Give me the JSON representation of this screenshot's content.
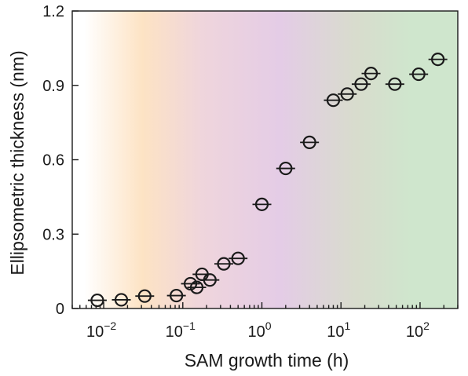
{
  "chart_data": {
    "type": "scatter",
    "xlabel": "SAM growth time (h)",
    "ylabel": "Ellipsometric thickness (nm)",
    "x_scale": "log",
    "xlim": [
      0.004,
      300
    ],
    "ylim": [
      0,
      1.2
    ],
    "grid": false,
    "y_ticks": [
      0,
      0.3,
      0.6,
      0.9,
      1.2
    ],
    "y_tick_labels": [
      "0",
      "0.3",
      "0.6",
      "0.9",
      "1.2"
    ],
    "x_ticks": [
      0.01,
      0.1,
      1,
      10,
      100
    ],
    "x_tick_labels": [
      {
        "base": "10",
        "exp": "−2"
      },
      {
        "base": "10",
        "exp": "−1"
      },
      {
        "base": "10",
        "exp": "0"
      },
      {
        "base": "10",
        "exp": "1"
      },
      {
        "base": "10",
        "exp": "2"
      }
    ],
    "background_regions": [
      {
        "from": 0.004,
        "to": 0.008,
        "color": "#ffffff"
      },
      {
        "from": 0.008,
        "to": 0.12,
        "color": "#fde3c4"
      },
      {
        "from": 0.12,
        "to": 0.25,
        "color": "#efd5dc"
      },
      {
        "from": 0.25,
        "to": 12,
        "color": "#e4cce6"
      },
      {
        "from": 12,
        "to": 20,
        "color": "#d8dccd"
      },
      {
        "from": 20,
        "to": 300,
        "color": "#cfe6cd"
      }
    ],
    "marker_color": "#1a1a1a",
    "points": [
      {
        "x": 0.0083,
        "y": 0.033
      },
      {
        "x": 0.0167,
        "y": 0.035
      },
      {
        "x": 0.033,
        "y": 0.05
      },
      {
        "x": 0.083,
        "y": 0.052
      },
      {
        "x": 0.125,
        "y": 0.1
      },
      {
        "x": 0.15,
        "y": 0.085
      },
      {
        "x": 0.175,
        "y": 0.138
      },
      {
        "x": 0.22,
        "y": 0.115
      },
      {
        "x": 0.33,
        "y": 0.18
      },
      {
        "x": 0.5,
        "y": 0.202
      },
      {
        "x": 1,
        "y": 0.42
      },
      {
        "x": 2,
        "y": 0.565
      },
      {
        "x": 4,
        "y": 0.67
      },
      {
        "x": 8,
        "y": 0.84
      },
      {
        "x": 12,
        "y": 0.865
      },
      {
        "x": 18,
        "y": 0.905
      },
      {
        "x": 24,
        "y": 0.948
      },
      {
        "x": 48,
        "y": 0.905
      },
      {
        "x": 96,
        "y": 0.945
      },
      {
        "x": 168,
        "y": 1.005
      }
    ]
  }
}
